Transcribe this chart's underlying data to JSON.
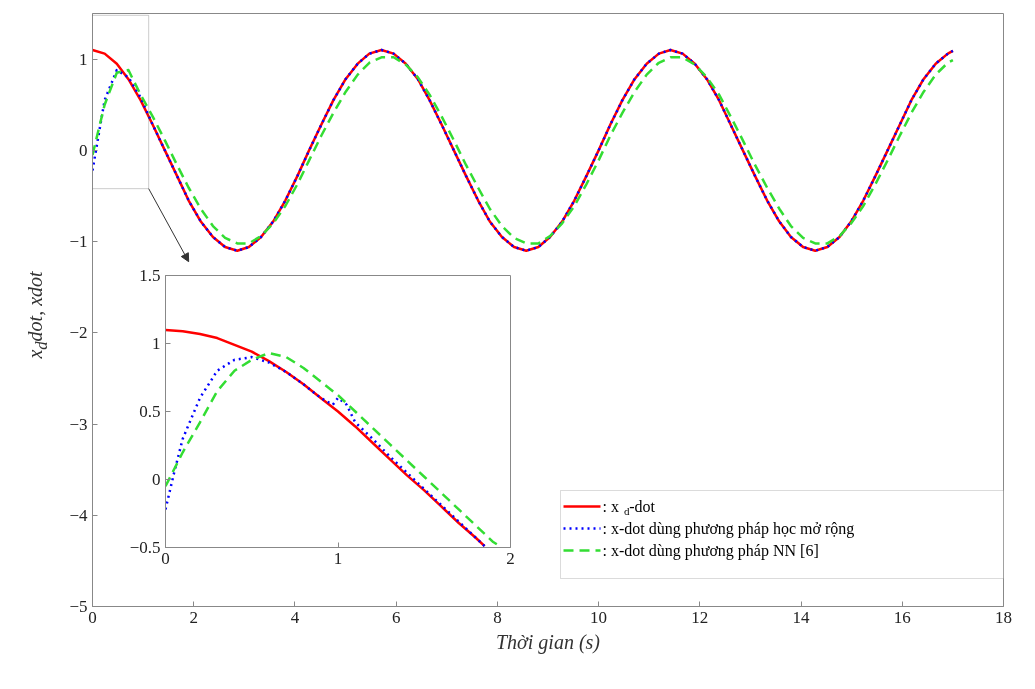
{
  "chart_data": [
    {
      "type": "line",
      "xlabel": "Thời gian (s)",
      "ylabel": "x$_{d}$dot, xdot",
      "xlim": [
        0,
        18
      ],
      "ylim": [
        -5,
        1.5
      ],
      "xticks": [
        0,
        2,
        4,
        6,
        8,
        10,
        12,
        14,
        16,
        18
      ],
      "yticks": [
        -5,
        -4,
        -3,
        -2,
        -1,
        0,
        1
      ],
      "legend": "bottom right",
      "x": [
        0,
        0.24,
        0.48,
        0.71,
        0.95,
        1.19,
        1.43,
        1.67,
        1.9,
        2.14,
        2.38,
        2.62,
        2.86,
        3.09,
        3.33,
        3.57,
        3.81,
        4.05,
        4.28,
        4.52,
        4.76,
        5,
        5.24,
        5.47,
        5.71,
        5.95,
        6.19,
        6.43,
        6.66,
        6.9,
        7.14,
        7.38,
        7.62,
        7.85,
        8.09,
        8.33,
        8.57,
        8.81,
        9.04,
        9.28,
        9.52,
        9.76,
        10,
        10.23,
        10.47,
        10.71,
        10.95,
        11.19,
        11.42,
        11.66,
        11.9,
        12.14,
        12.38,
        12.61,
        12.85,
        13.09,
        13.33,
        13.57,
        13.8,
        14.04,
        14.28,
        14.52,
        14.76,
        14.99,
        15.23,
        15.47,
        15.71,
        15.95,
        16.18,
        16.42,
        16.66,
        16.9,
        17
      ],
      "series": [
        {
          "name": ": x$_{d}$-dot",
          "color": "#ff0000",
          "line_style": "solid",
          "values": [
            1.1,
            1.06,
            0.95,
            0.78,
            0.55,
            0.28,
            0,
            -0.28,
            -0.55,
            -0.78,
            -0.95,
            -1.06,
            -1.1,
            -1.06,
            -0.95,
            -0.78,
            -0.55,
            -0.28,
            0,
            0.28,
            0.55,
            0.78,
            0.95,
            1.06,
            1.1,
            1.06,
            0.95,
            0.78,
            0.55,
            0.28,
            0,
            -0.28,
            -0.55,
            -0.78,
            -0.95,
            -1.06,
            -1.1,
            -1.06,
            -0.95,
            -0.78,
            -0.55,
            -0.28,
            0,
            0.28,
            0.55,
            0.78,
            0.95,
            1.06,
            1.1,
            1.06,
            0.95,
            0.78,
            0.55,
            0.28,
            0,
            -0.28,
            -0.55,
            -0.78,
            -0.95,
            -1.06,
            -1.1,
            -1.06,
            -0.95,
            -0.78,
            -0.55,
            -0.28,
            0,
            0.28,
            0.55,
            0.78,
            0.95,
            1.06,
            1.09
          ]
        },
        {
          "name": ": x-dot dùng phương pháp học mở rộng",
          "color": "#0000ff",
          "line_style": "dotted",
          "values": [
            -0.22,
            0.55,
            0.88,
            0.8,
            0.58,
            0.28,
            0,
            -0.28,
            -0.55,
            -0.78,
            -0.95,
            -1.06,
            -1.1,
            -1.06,
            -0.95,
            -0.78,
            -0.55,
            -0.28,
            0,
            0.28,
            0.55,
            0.78,
            0.95,
            1.06,
            1.1,
            1.06,
            0.95,
            0.78,
            0.55,
            0.28,
            0,
            -0.28,
            -0.55,
            -0.78,
            -0.95,
            -1.06,
            -1.1,
            -1.06,
            -0.95,
            -0.78,
            -0.55,
            -0.28,
            0,
            0.28,
            0.55,
            0.78,
            0.95,
            1.06,
            1.1,
            1.06,
            0.95,
            0.78,
            0.55,
            0.28,
            0,
            -0.28,
            -0.55,
            -0.78,
            -0.95,
            -1.06,
            -1.1,
            -1.06,
            -0.95,
            -0.78,
            -0.55,
            -0.28,
            0,
            0.28,
            0.55,
            0.78,
            0.95,
            1.06,
            1.09
          ]
        },
        {
          "name": ": x-dot dùng phương pháp NN [6]",
          "color": "#33dd33",
          "line_style": "dashed",
          "values": [
            -0.05,
            0.5,
            0.85,
            0.88,
            0.61,
            0.37,
            0.11,
            -0.16,
            -0.41,
            -0.64,
            -0.83,
            -0.96,
            -1.02,
            -1.02,
            -0.94,
            -0.8,
            -0.61,
            -0.37,
            -0.11,
            0.16,
            0.41,
            0.64,
            0.83,
            0.96,
            1.02,
            1.02,
            0.94,
            0.8,
            0.61,
            0.37,
            0.11,
            -0.16,
            -0.41,
            -0.64,
            -0.83,
            -0.96,
            -1.02,
            -1.02,
            -0.94,
            -0.8,
            -0.61,
            -0.37,
            -0.11,
            0.16,
            0.41,
            0.64,
            0.83,
            0.96,
            1.02,
            1.02,
            0.94,
            0.8,
            0.61,
            0.37,
            0.11,
            -0.16,
            -0.41,
            -0.64,
            -0.83,
            -0.96,
            -1.02,
            -1.02,
            -0.94,
            -0.8,
            -0.61,
            -0.37,
            -0.11,
            0.16,
            0.41,
            0.64,
            0.83,
            0.96,
            0.99
          ]
        }
      ]
    },
    {
      "type": "line",
      "xlim": [
        0,
        2
      ],
      "ylim": [
        -0.5,
        1.5
      ],
      "xticks": [
        0,
        1,
        2
      ],
      "yticks": [
        -0.5,
        0,
        0.5,
        1,
        1.5
      ],
      "series": [
        {
          "color": "#ff0000",
          "line_style": "solid",
          "x": [
            0,
            0.1,
            0.2,
            0.3,
            0.4,
            0.5,
            0.6,
            0.7,
            0.8,
            0.9,
            1,
            1.1,
            1.2,
            1.3,
            1.4,
            1.5,
            1.6,
            1.7,
            1.8,
            1.85
          ],
          "values": [
            1.1,
            1.09,
            1.07,
            1.04,
            0.99,
            0.94,
            0.87,
            0.79,
            0.7,
            0.6,
            0.5,
            0.39,
            0.27,
            0.15,
            0.03,
            -0.08,
            -0.2,
            -0.32,
            -0.43,
            -0.49
          ]
        },
        {
          "color": "#0000ff",
          "line_style": "dotted",
          "x": [
            0,
            0.05,
            0.1,
            0.2,
            0.3,
            0.4,
            0.5,
            0.6,
            0.7,
            0.8,
            0.9,
            0.97,
            1,
            1.05,
            1.1,
            1.2,
            1.3,
            1.4,
            1.5,
            1.6,
            1.7,
            1.8,
            1.85
          ],
          "values": [
            -0.22,
            0.05,
            0.3,
            0.6,
            0.8,
            0.88,
            0.9,
            0.86,
            0.79,
            0.7,
            0.6,
            0.55,
            0.6,
            0.55,
            0.42,
            0.3,
            0.17,
            0.05,
            -0.07,
            -0.19,
            -0.31,
            -0.43,
            -0.49
          ]
        },
        {
          "color": "#33dd33",
          "line_style": "dashed",
          "x": [
            0,
            0.1,
            0.2,
            0.3,
            0.4,
            0.5,
            0.6,
            0.7,
            0.8,
            0.9,
            1,
            1.1,
            1.2,
            1.3,
            1.4,
            1.5,
            1.6,
            1.7,
            1.8,
            1.9,
            1.95
          ],
          "values": [
            -0.05,
            0.2,
            0.42,
            0.65,
            0.8,
            0.88,
            0.93,
            0.9,
            0.82,
            0.72,
            0.62,
            0.5,
            0.38,
            0.26,
            0.14,
            0.02,
            -0.1,
            -0.22,
            -0.34,
            -0.46,
            -0.5
          ]
        }
      ]
    }
  ]
}
